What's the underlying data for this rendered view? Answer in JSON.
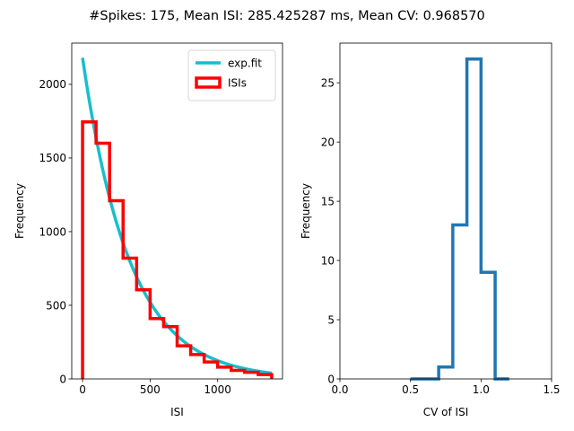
{
  "figure": {
    "suptitle": "#Spikes: 175, Mean ISI: 285.425287 ms, Mean CV: 0.968570"
  },
  "chart_data": [
    {
      "type": "histogram",
      "xlabel": "ISI",
      "ylabel": "Frequency",
      "xlim": [
        -80,
        1480
      ],
      "ylim": [
        0,
        2280
      ],
      "xticks": [
        0,
        500,
        1000
      ],
      "yticks": [
        0,
        500,
        1000,
        1500,
        2000
      ],
      "legend_position": "upper right",
      "series": [
        {
          "name": "exp.fit",
          "kind": "line",
          "color": "#17becf",
          "function": "2180*exp(-x/349)",
          "x_range": [
            0,
            1400
          ]
        },
        {
          "name": "ISIs",
          "kind": "step",
          "color": "#ff0000",
          "bin_edges": [
            0,
            100,
            200,
            300,
            400,
            500,
            600,
            700,
            800,
            900,
            1000,
            1100,
            1200,
            1300,
            1400
          ],
          "values": [
            1745,
            1600,
            1210,
            820,
            605,
            410,
            355,
            225,
            165,
            115,
            80,
            58,
            45,
            30
          ]
        }
      ]
    },
    {
      "type": "histogram",
      "xlabel": "CV of ISI",
      "ylabel": "Frequency",
      "xlim": [
        0,
        1.5
      ],
      "ylim": [
        0,
        28.35
      ],
      "xticks": [
        0.0,
        0.5,
        1.0,
        1.5
      ],
      "yticks": [
        0,
        5,
        10,
        15,
        20,
        25
      ],
      "series": [
        {
          "kind": "step",
          "color": "#1f77b4",
          "bin_edges": [
            0.5,
            0.6,
            0.7,
            0.8,
            0.9,
            1.0,
            1.1,
            1.2
          ],
          "values": [
            0,
            0,
            1,
            13,
            27,
            9,
            0
          ]
        }
      ]
    }
  ]
}
